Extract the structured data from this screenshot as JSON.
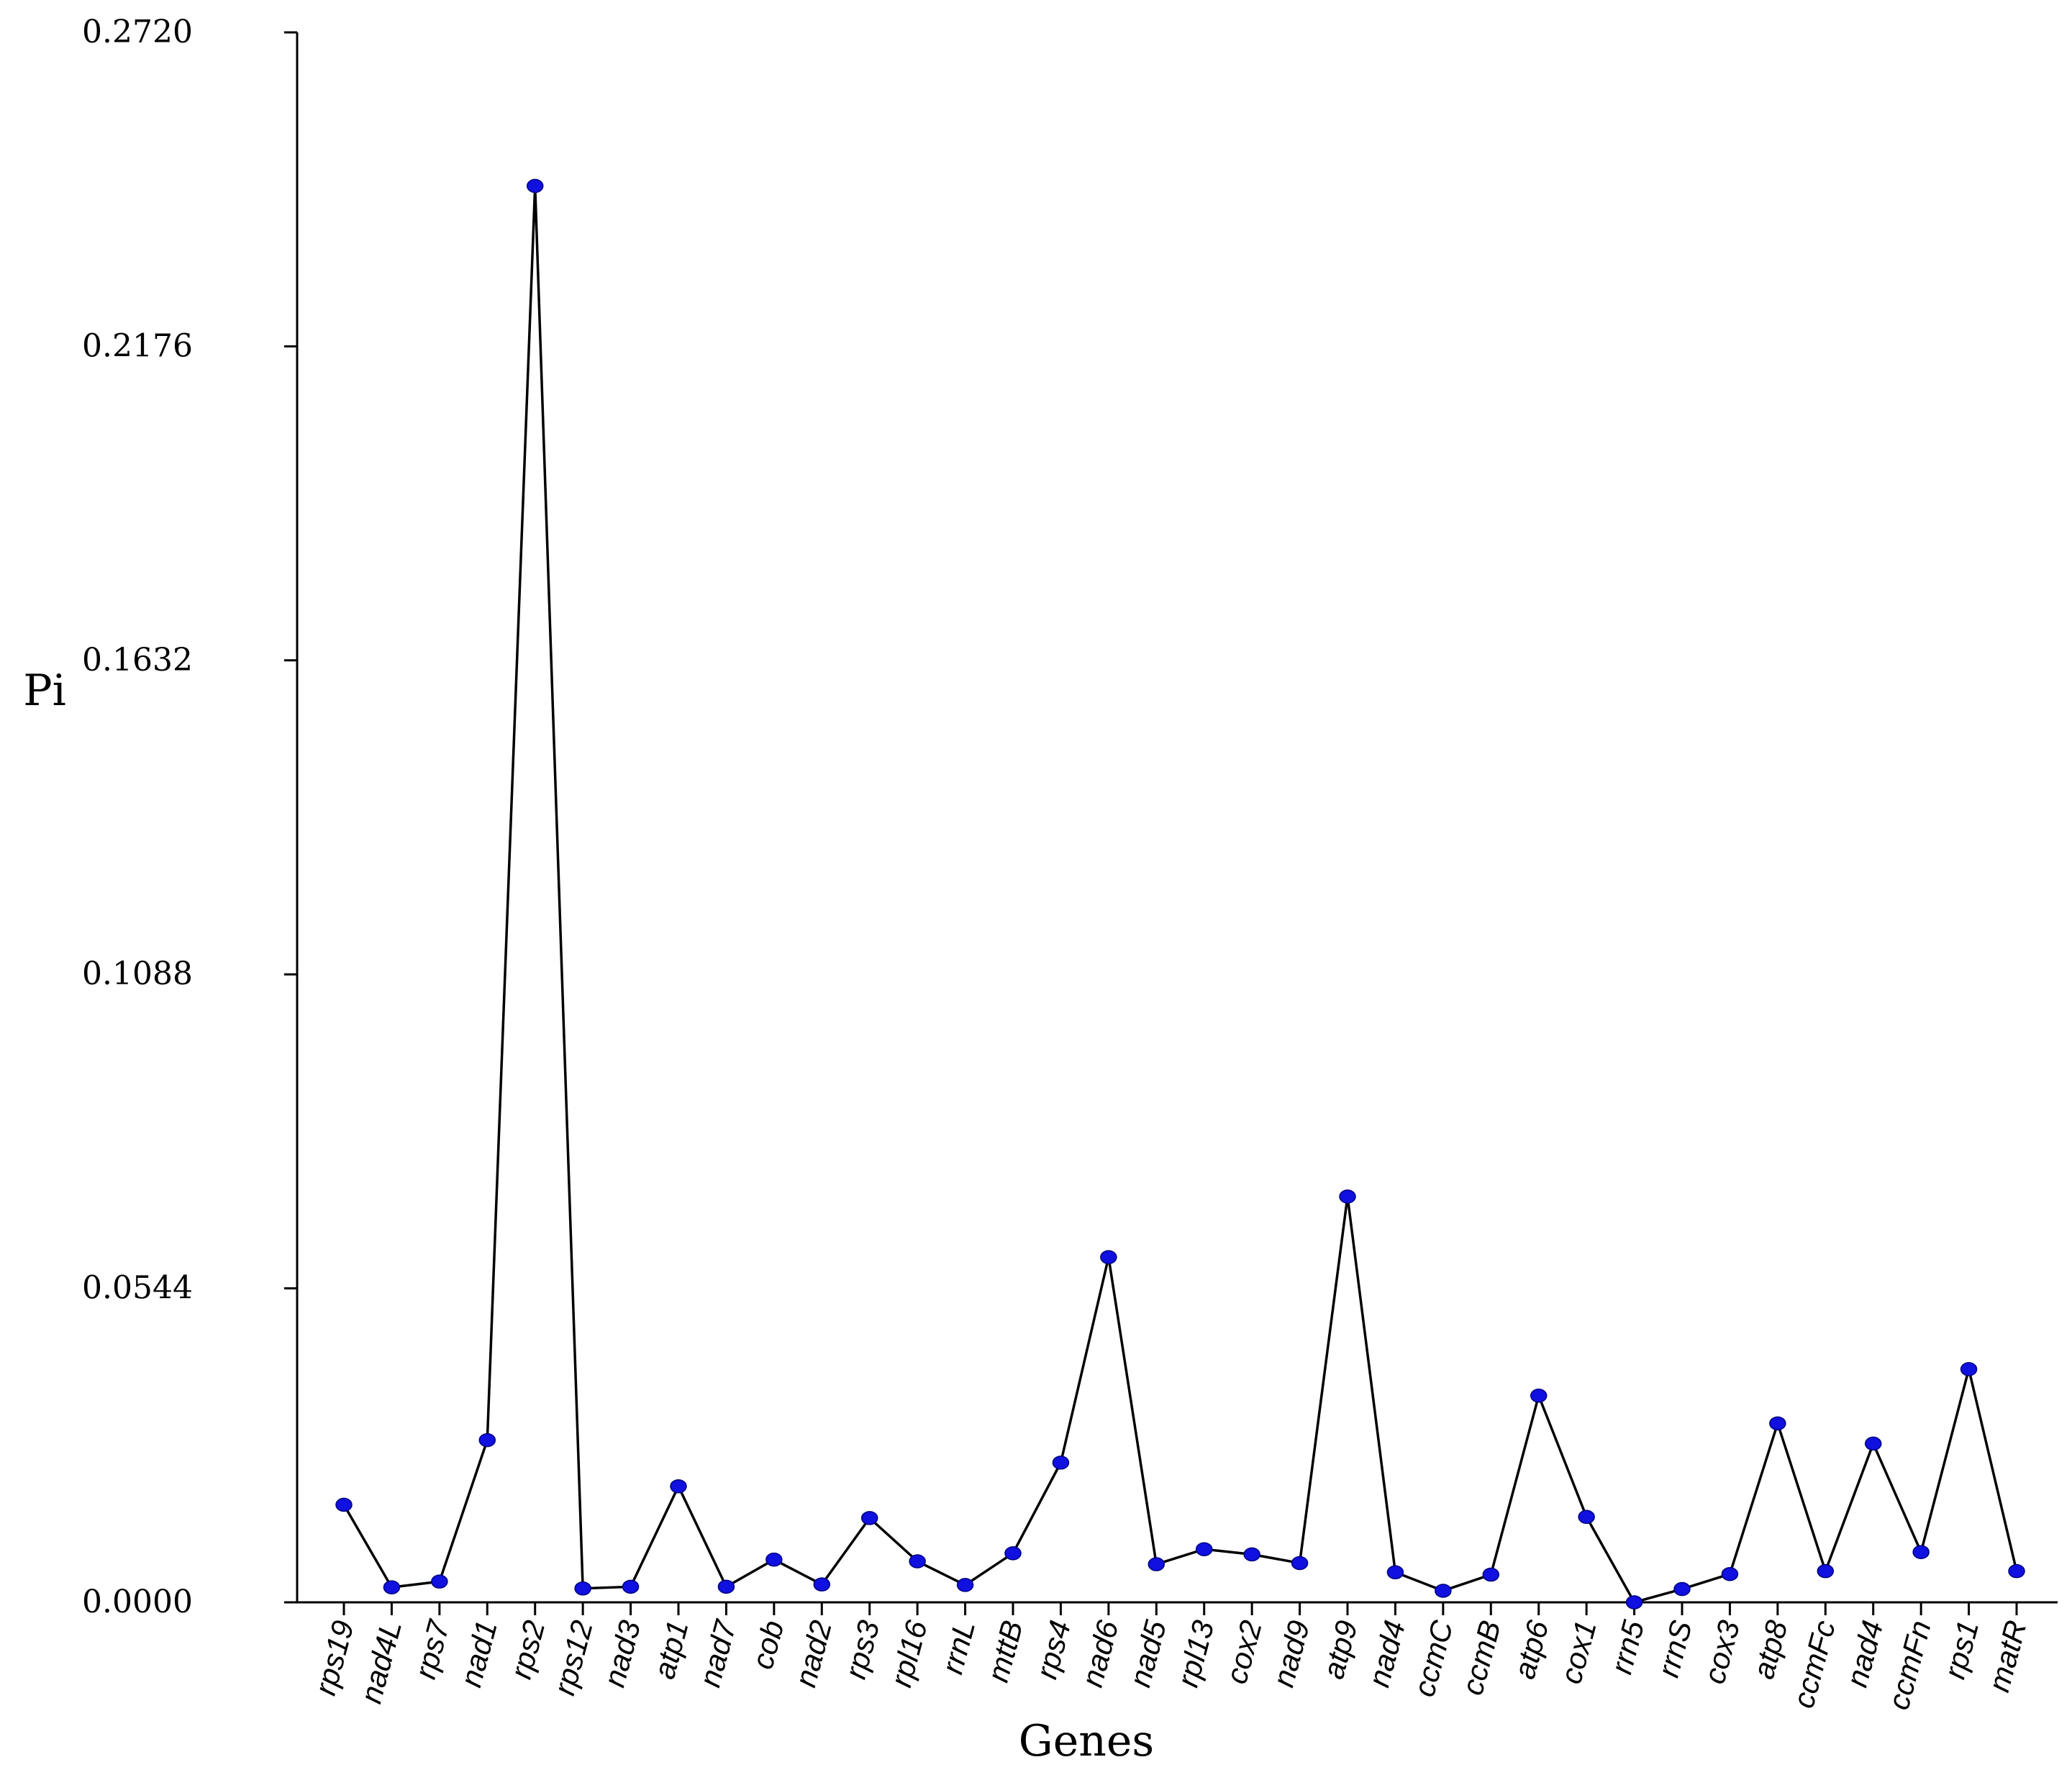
{
  "chart_data": {
    "type": "line",
    "xlabel": "Genes",
    "ylabel": "Pi",
    "ylim": [
      0,
      0.272
    ],
    "y_ticks": [
      "0.0000",
      "0.0544",
      "0.1088",
      "0.1632",
      "0.2176",
      "0.2720"
    ],
    "y_tick_values": [
      0,
      0.0544,
      0.1088,
      0.1632,
      0.2176,
      0.272
    ],
    "grid": false,
    "legend": "none",
    "colors": {
      "line": "#000000",
      "marker": "#1010e0"
    },
    "categories": [
      "rps19",
      "nad4L",
      "rps7",
      "nad1",
      "rps2",
      "rps12",
      "nad3",
      "atp1",
      "nad7",
      "cob",
      "nad2",
      "rps3",
      "rpl16",
      "rrnL",
      "mttB",
      "rps4",
      "nad6",
      "nad5",
      "rpl13",
      "cox2",
      "nad9",
      "atp9",
      "nad4",
      "ccmC",
      "ccmB",
      "atp6",
      "cox1",
      "rrn5",
      "rrnS",
      "cox3",
      "atp8",
      "ccmFc",
      "nad4",
      "ccmFn",
      "rps1",
      "matR"
    ],
    "series": [
      {
        "values": [
          0.0169,
          0.0026,
          0.0036,
          0.0281,
          0.2454,
          0.0024,
          0.0027,
          0.0201,
          0.0027,
          0.0074,
          0.0031,
          0.0146,
          0.0071,
          0.003,
          0.0085,
          0.0242,
          0.0598,
          0.0066,
          0.0092,
          0.0083,
          0.0068,
          0.0703,
          0.0052,
          0.002,
          0.0048,
          0.0358,
          0.0148,
          0.0,
          0.0023,
          0.0049,
          0.031,
          0.0054,
          0.0275,
          0.0087,
          0.0404,
          0.0054
        ]
      }
    ]
  }
}
